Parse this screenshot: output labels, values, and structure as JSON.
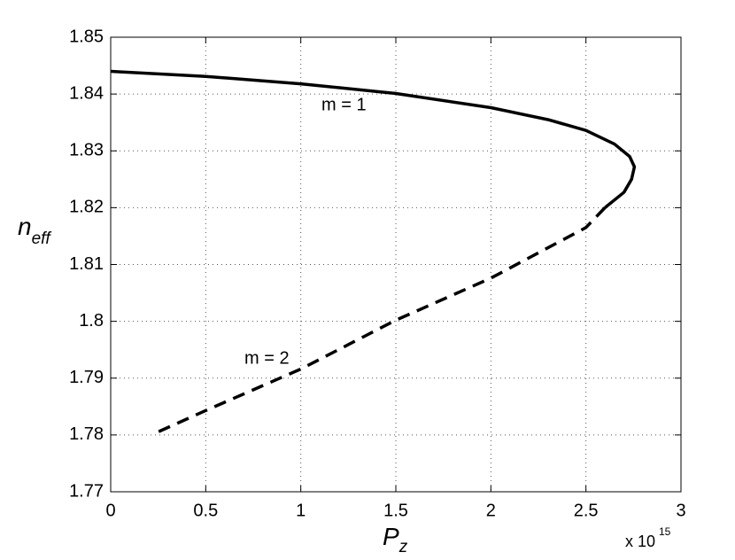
{
  "chart_data": {
    "type": "line",
    "xlim": [
      0,
      3
    ],
    "xticks": [
      0,
      0.5,
      1,
      1.5,
      2,
      2.5,
      3
    ],
    "ylim": [
      1.77,
      1.85
    ],
    "yticks": [
      1.77,
      1.78,
      1.79,
      1.8,
      1.81,
      1.82,
      1.83,
      1.84,
      1.85
    ],
    "grid": true,
    "x_multiplier": "x 10",
    "x_multiplier_exponent": "15",
    "xlabel": "P",
    "xlabel_subscript": "z",
    "ylabel": "n",
    "ylabel_subscript": "eff",
    "annotations": [
      "m = 1",
      "m = 2"
    ],
    "series": [
      {
        "color": "#000000",
        "dashed": false,
        "x": [
          0,
          0.5,
          1,
          1.5,
          2,
          2.3,
          2.5,
          2.65,
          2.73,
          2.755,
          2.74,
          2.7,
          2.6
        ],
        "values": [
          1.844,
          1.8431,
          1.8418,
          1.8401,
          1.8376,
          1.8355,
          1.8336,
          1.8312,
          1.829,
          1.8272,
          1.825,
          1.8227,
          1.82
        ]
      },
      {
        "color": "#000000",
        "dashed": true,
        "x": [
          2.6,
          2.5,
          2,
          1.5,
          1,
          0.5,
          0.22
        ],
        "values": [
          1.82,
          1.8165,
          1.8076,
          1.8002,
          1.7916,
          1.7843,
          1.7801
        ]
      }
    ]
  }
}
